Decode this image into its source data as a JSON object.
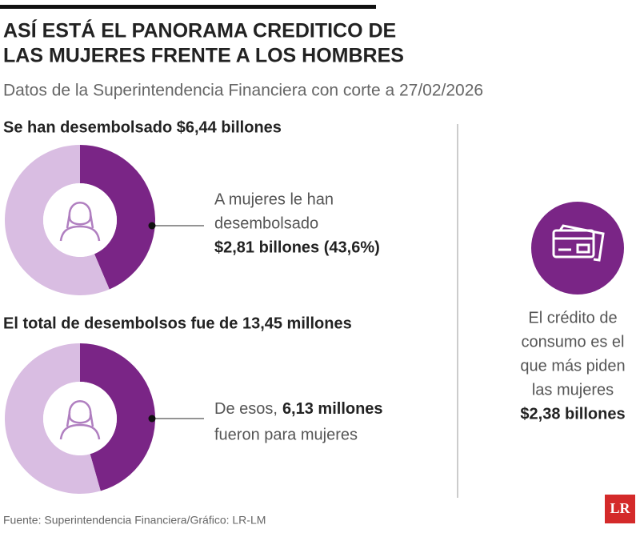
{
  "header": {
    "title_lines": [
      "ASÍ ESTÁ EL PANORAMA CREDITICO DE",
      "LAS MUJERES FRENTE A LOS HOMBRES"
    ],
    "subtitle": "Datos de la Superintendencia Financiera con corte a 27/02/2026"
  },
  "chart_data": [
    {
      "type": "pie",
      "title": "Se han desembolsado $6,44 billones",
      "values": [
        43.6,
        56.4
      ],
      "colors": [
        "#7a2586",
        "#d9bde2"
      ],
      "annotation_lines": [
        "A mujeres le han",
        "desembolsado"
      ],
      "annotation_bold": "$2,81 billones (43,6%)"
    },
    {
      "type": "pie",
      "title": "El total de desembolsos fue de 13,45 millones",
      "values": [
        6.13,
        7.32
      ],
      "colors": [
        "#7a2586",
        "#d9bde2"
      ],
      "annotation_prefix": "De esos,",
      "annotation_bold": "6,13 millones",
      "annotation_end": "fueron para mujeres"
    }
  ],
  "side": {
    "lines": [
      "El crédito de",
      "consumo es el",
      "que más piden",
      "las mujeres"
    ],
    "bold": "$2,38 billones"
  },
  "footer": "Fuente: Superintendencia Financiera/Gráfico: LR-LM",
  "logo": "LR"
}
